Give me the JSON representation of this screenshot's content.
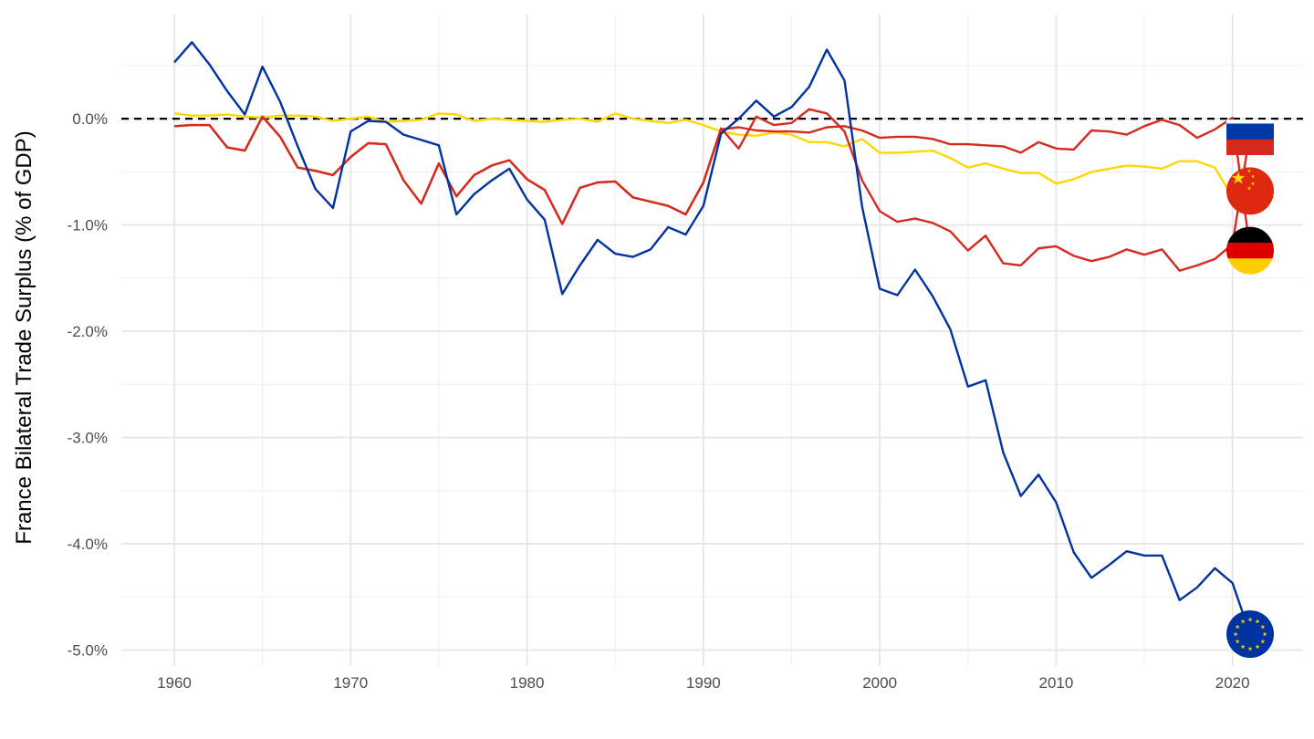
{
  "chart_data": {
    "type": "line",
    "title": "",
    "xlabel": "",
    "ylabel": "France Bilateral Trade Surplus (% of GDP)",
    "xlim": [
      1957,
      2024
    ],
    "ylim": [
      -5.15,
      0.98
    ],
    "x_ticks": [
      1960,
      1970,
      1980,
      1990,
      2000,
      2010,
      2020
    ],
    "x_tick_labels": [
      "1960",
      "1970",
      "1980",
      "1990",
      "2000",
      "2010",
      "2020"
    ],
    "y_ticks": [
      0,
      -1,
      -2,
      -3,
      -4,
      -5
    ],
    "y_tick_labels": [
      "0.0%",
      "-1.0%",
      "-2.0%",
      "-3.0%",
      "-4.0%",
      "-5.0%"
    ],
    "grid": true,
    "legend": "none",
    "reference_line": {
      "y": 0,
      "style": "dashed",
      "color": "#000000"
    },
    "x": [
      1960,
      1961,
      1962,
      1963,
      1964,
      1965,
      1966,
      1967,
      1968,
      1969,
      1970,
      1971,
      1972,
      1973,
      1974,
      1975,
      1976,
      1977,
      1978,
      1979,
      1980,
      1981,
      1982,
      1983,
      1984,
      1985,
      1986,
      1987,
      1988,
      1989,
      1990,
      1991,
      1992,
      1993,
      1994,
      1995,
      1996,
      1997,
      1998,
      1999,
      2000,
      2001,
      2002,
      2003,
      2004,
      2005,
      2006,
      2007,
      2008,
      2009,
      2010,
      2011,
      2012,
      2013,
      2014,
      2015,
      2016,
      2017,
      2018,
      2019,
      2020
    ],
    "series": [
      {
        "color": "#0033a0",
        "end_marker": "eu-flag",
        "end_x": 2021,
        "end_y": -4.85,
        "values": [
          0.53,
          0.72,
          0.51,
          0.26,
          0.04,
          0.49,
          0.16,
          -0.26,
          -0.66,
          -0.84,
          -0.12,
          -0.02,
          -0.03,
          -0.15,
          -0.2,
          -0.25,
          -0.9,
          -0.71,
          -0.58,
          -0.47,
          -0.76,
          -0.95,
          -1.65,
          -1.38,
          -1.14,
          -1.27,
          -1.3,
          -1.23,
          -1.02,
          -1.09,
          -0.82,
          -0.14,
          0.0,
          0.17,
          0.02,
          0.11,
          0.3,
          0.65,
          0.36,
          -0.83,
          -1.6,
          -1.66,
          -1.42,
          -1.67,
          -1.98,
          -2.52,
          -2.46,
          -3.14,
          -3.55,
          -3.35,
          -3.61,
          -4.08,
          -4.32,
          -4.2,
          -4.07,
          -4.11,
          -4.11,
          -4.53,
          -4.41,
          -4.23,
          -4.37
        ]
      },
      {
        "color": "#d52b1e",
        "end_marker": "russia-flag",
        "end_x": 2021,
        "end_y": -0.12,
        "values": [
          -0.07,
          -0.06,
          -0.06,
          -0.27,
          -0.3,
          0.02,
          -0.17,
          -0.46,
          -0.49,
          -0.53,
          -0.36,
          -0.23,
          -0.24,
          -0.58,
          -0.8,
          -0.42,
          -0.73,
          -0.53,
          -0.44,
          -0.39,
          -0.57,
          -0.67,
          -0.99,
          -0.65,
          -0.6,
          -0.59,
          -0.74,
          -0.78,
          -0.82,
          -0.9,
          -0.6,
          -0.09,
          -0.28,
          0.02,
          -0.06,
          -0.04,
          0.09,
          0.05,
          -0.12,
          -0.58,
          -0.87,
          -0.97,
          -0.94,
          -0.98,
          -1.06,
          -1.24,
          -1.1,
          -1.36,
          -1.38,
          -1.22,
          -1.2,
          -1.29,
          -1.34,
          -1.3,
          -1.23,
          -1.28,
          -1.23,
          -1.43,
          -1.38,
          -1.32,
          -1.18
        ]
      },
      {
        "color": "#d52b1e",
        "end_marker": "germany-flag",
        "end_x": 2021,
        "end_y": -1.24,
        "values": [
          -0.07,
          -0.06,
          -0.06,
          -0.27,
          -0.3,
          0.02,
          -0.17,
          -0.46,
          -0.49,
          -0.53,
          -0.36,
          -0.23,
          -0.24,
          -0.58,
          -0.8,
          -0.42,
          -0.73,
          -0.53,
          -0.44,
          -0.39,
          -0.57,
          -0.67,
          -0.99,
          -0.65,
          -0.6,
          -0.59,
          -0.74,
          -0.78,
          -0.82,
          -0.9,
          -0.6,
          -0.1,
          -0.08,
          -0.11,
          -0.12,
          -0.12,
          -0.13,
          -0.08,
          -0.07,
          -0.11,
          -0.18,
          -0.17,
          -0.17,
          -0.19,
          -0.24,
          -0.24,
          -0.25,
          -0.26,
          -0.32,
          -0.22,
          -0.28,
          -0.29,
          -0.11,
          -0.12,
          -0.15,
          -0.07,
          -0.01,
          -0.06,
          -0.18,
          -0.1,
          0.01
        ]
      },
      {
        "color": "#ffd700",
        "end_marker": "china-flag",
        "end_x": 2021,
        "end_y": -0.68,
        "values": [
          0.05,
          0.03,
          0.03,
          0.04,
          0.02,
          0.01,
          0.03,
          0.03,
          0.02,
          -0.02,
          0.0,
          0.02,
          -0.03,
          -0.02,
          -0.01,
          0.05,
          0.04,
          -0.02,
          0.0,
          -0.01,
          -0.02,
          -0.03,
          -0.01,
          0.0,
          -0.03,
          0.05,
          0.0,
          -0.02,
          -0.04,
          -0.01,
          -0.06,
          -0.12,
          -0.15,
          -0.16,
          -0.13,
          -0.15,
          -0.22,
          -0.22,
          -0.26,
          -0.19,
          -0.32,
          -0.32,
          -0.31,
          -0.3,
          -0.37,
          -0.46,
          -0.42,
          -0.47,
          -0.51,
          -0.51,
          -0.61,
          -0.57,
          -0.5,
          -0.47,
          -0.44,
          -0.45,
          -0.47,
          -0.4,
          -0.4,
          -0.46,
          -0.74
        ]
      }
    ]
  }
}
